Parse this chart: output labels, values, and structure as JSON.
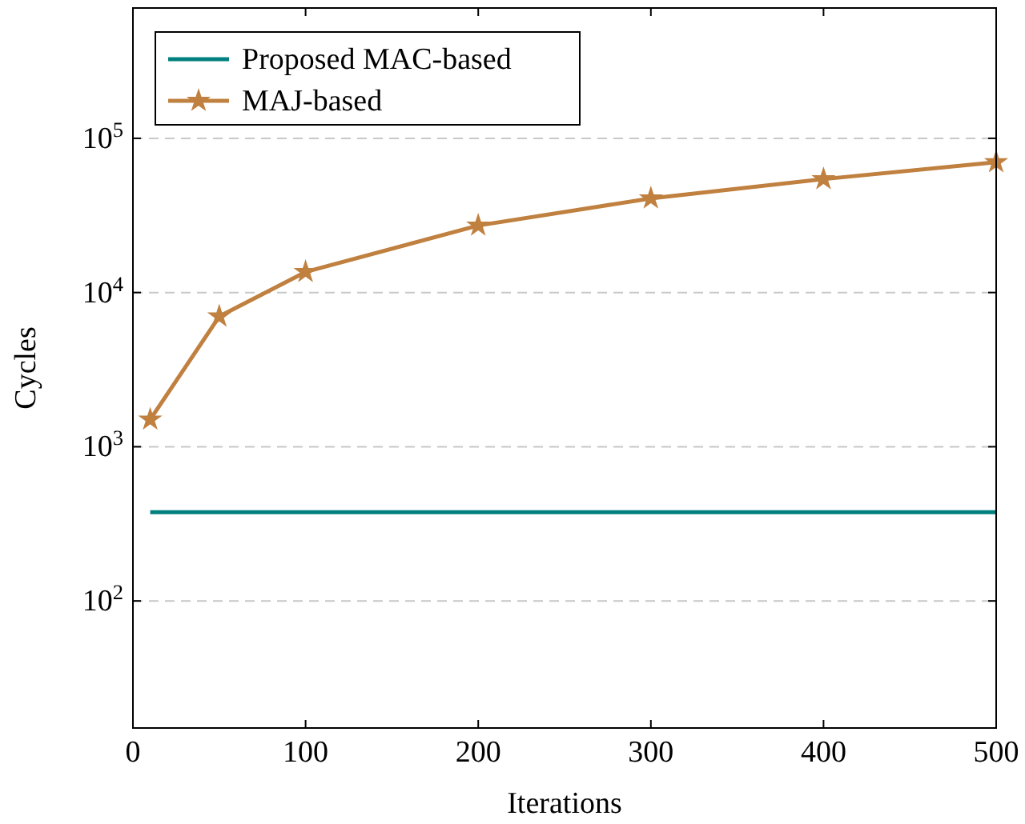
{
  "chart_data": {
    "type": "line",
    "xlabel": "Iterations",
    "ylabel": "Cycles",
    "log": "y",
    "grid": "y",
    "legend": "top left",
    "line_style": "solid",
    "xlim": [
      0,
      500
    ],
    "xticks": [
      0,
      100,
      200,
      300,
      400,
      500
    ],
    "ylim": [
      15,
      700000
    ],
    "yticks": [
      {
        "value": 100,
        "label": "10$^{2}$"
      },
      {
        "value": 1000,
        "label": "10$^{3}$"
      },
      {
        "value": 10000,
        "label": "10$^{4}$"
      },
      {
        "value": 100000,
        "label": "10$^{5}$"
      }
    ],
    "series": [
      {
        "name": "Proposed MAC-based",
        "color": "#00807f",
        "marker": "none",
        "x": [
          10,
          50,
          100,
          200,
          300,
          400,
          500
        ],
        "values": [
          376,
          376,
          376,
          376,
          376,
          376,
          376
        ]
      },
      {
        "name": "MAJ-based",
        "color": "#c0803f",
        "marker": "star",
        "x": [
          10,
          50,
          100,
          200,
          300,
          400,
          500
        ],
        "values": [
          1500,
          7000,
          13600,
          27200,
          40800,
          54400,
          70000
        ]
      }
    ]
  }
}
